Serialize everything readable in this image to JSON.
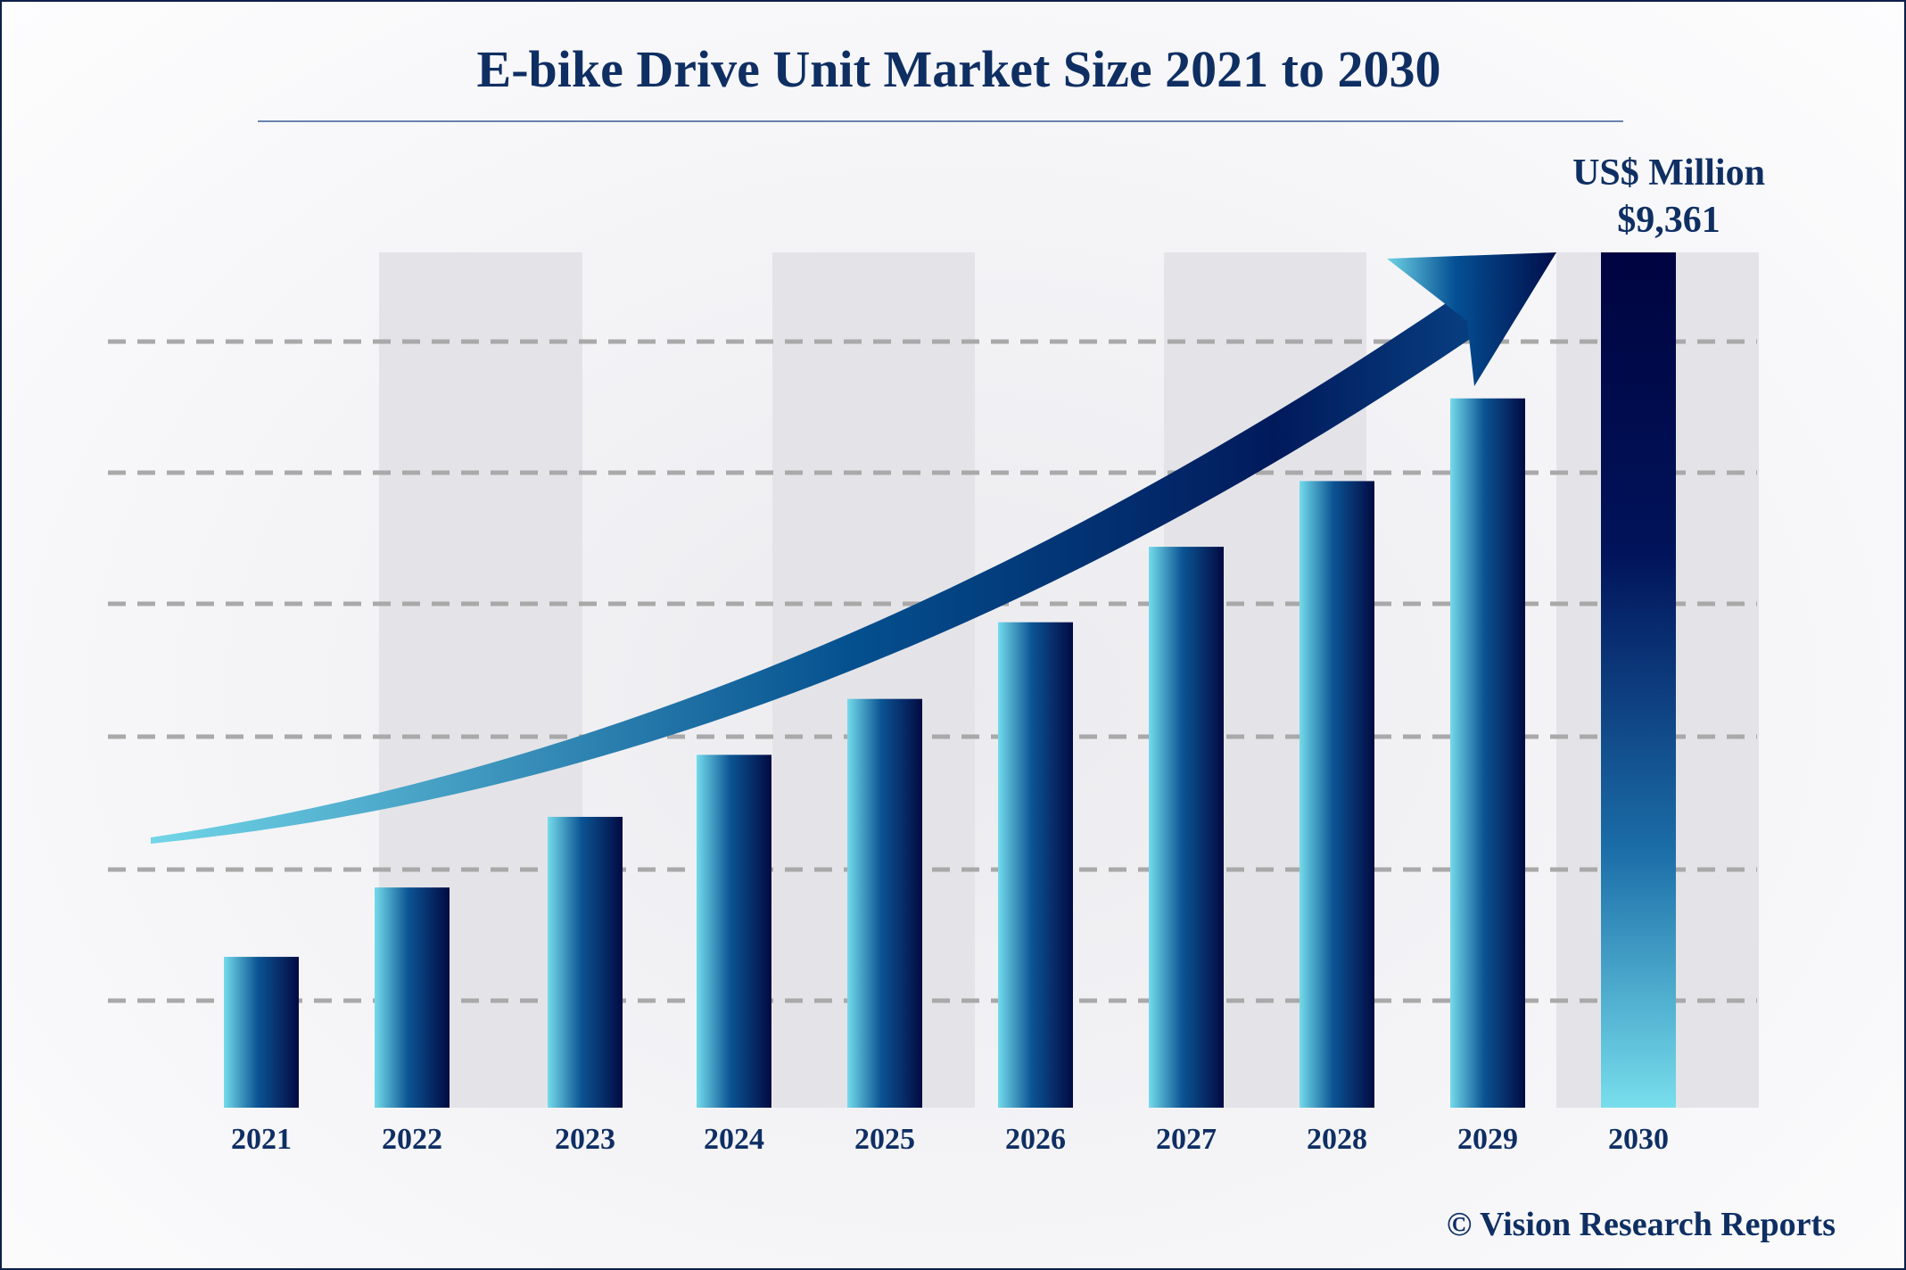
{
  "chart_data": {
    "type": "bar",
    "title": "E-bike Drive Unit Market Size 2021 to 2030",
    "unit_label": "US$ Million",
    "highlight_label": "$9,361",
    "categories": [
      "2021",
      "2022",
      "2023",
      "2024",
      "2025",
      "2026",
      "2027",
      "2028",
      "2029",
      "2030"
    ],
    "values": [
      1651,
      2410,
      3183,
      3862,
      4474,
      5313,
      6139,
      6858,
      7763,
      9361
    ],
    "ylim": [
      0,
      9361
    ],
    "grid": true,
    "grid_style": "dashed",
    "trend_arrow": true,
    "colors": {
      "title": "#0f2f63",
      "bar_light": "#72d8ea",
      "bar_mid": "#0a4a8a",
      "bar_dark": "#010740",
      "band": "#e4e4e8",
      "grid": "#a9a9a9",
      "border": "#0d1f4a"
    }
  },
  "footer": {
    "copyright": "© Vision Research Reports"
  }
}
